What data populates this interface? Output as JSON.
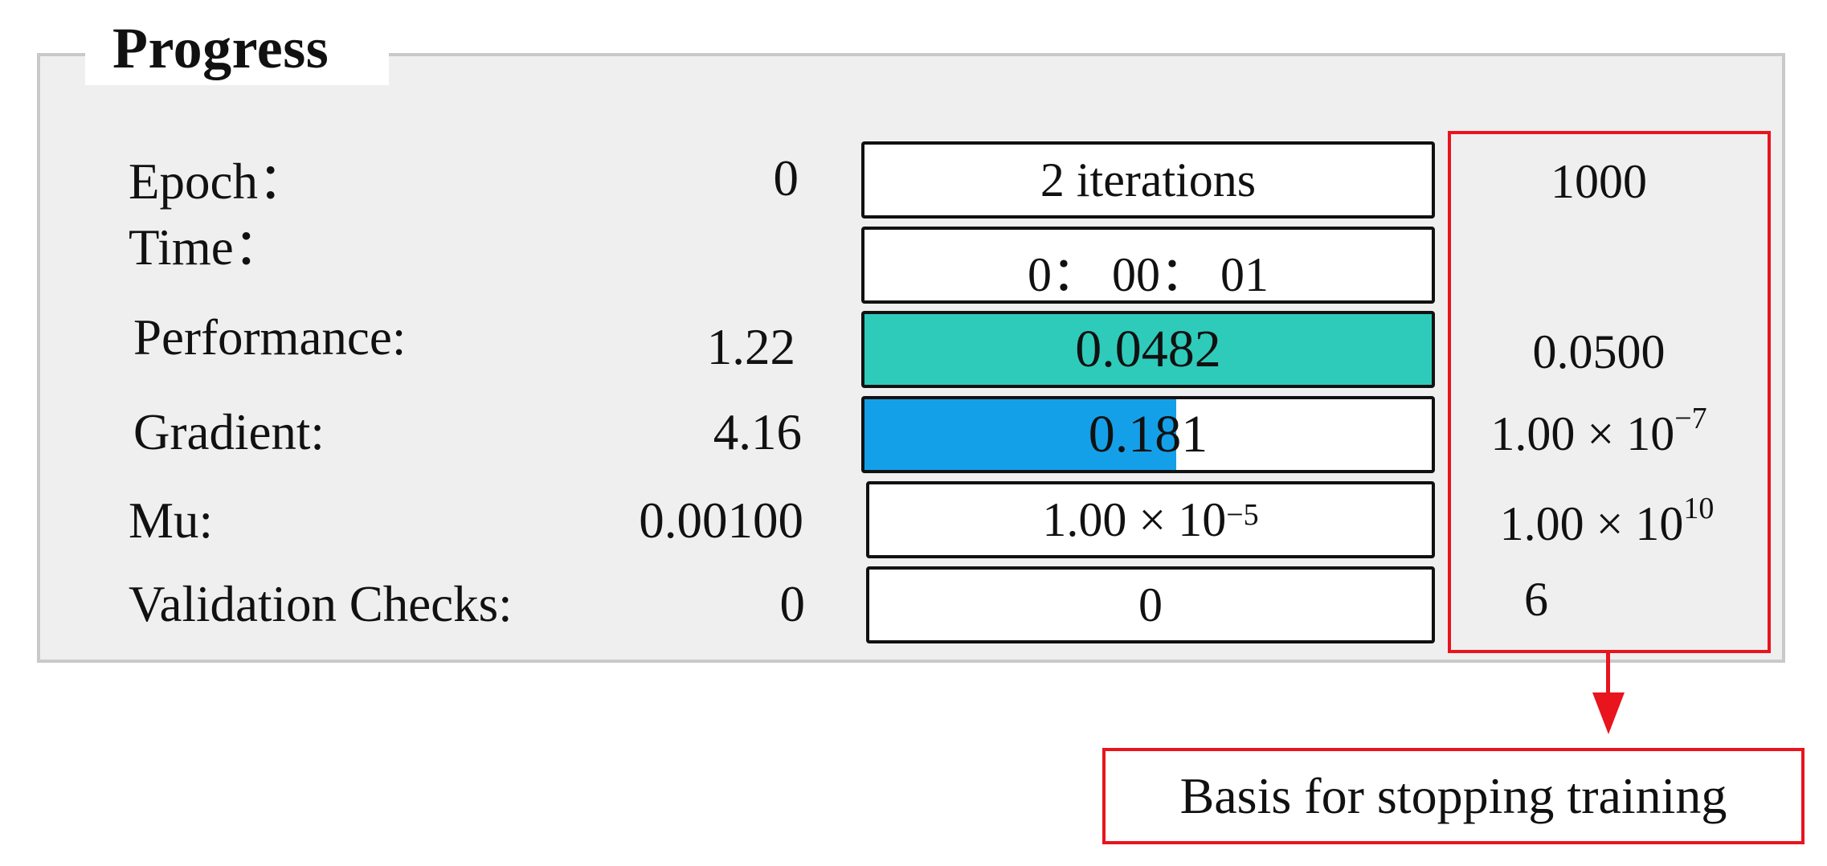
{
  "panel": {
    "title": "Progress"
  },
  "rows": {
    "epoch": {
      "label": "Epoch：",
      "initial": "0",
      "current": "2 iterations",
      "target": "1000"
    },
    "time": {
      "label": "Time：",
      "current": "0： 00： 01"
    },
    "performance": {
      "label": "Performance:",
      "initial": "1.22",
      "current": "0.0482",
      "target": "0.0500",
      "progress": 1.0,
      "bar_color": "#2ecbbb"
    },
    "gradient": {
      "label": "Gradient:",
      "initial": "4.16",
      "current": "0.181",
      "progress": 0.55,
      "bar_color": "#14a0e8",
      "target_mantissa": "1.00 × 10",
      "target_exponent": "−7"
    },
    "mu": {
      "label": "Mu:",
      "initial": "0.00100",
      "current_mantissa": "1.00 × 10",
      "current_exponent": "−5",
      "target_mantissa": "1.00 × 10",
      "target_exponent": "10"
    },
    "validation": {
      "label": "Validation Checks:",
      "initial": "0",
      "current": "0",
      "target": "6"
    }
  },
  "annotation": {
    "text": "Basis for stopping training",
    "color": "#e8141e"
  }
}
